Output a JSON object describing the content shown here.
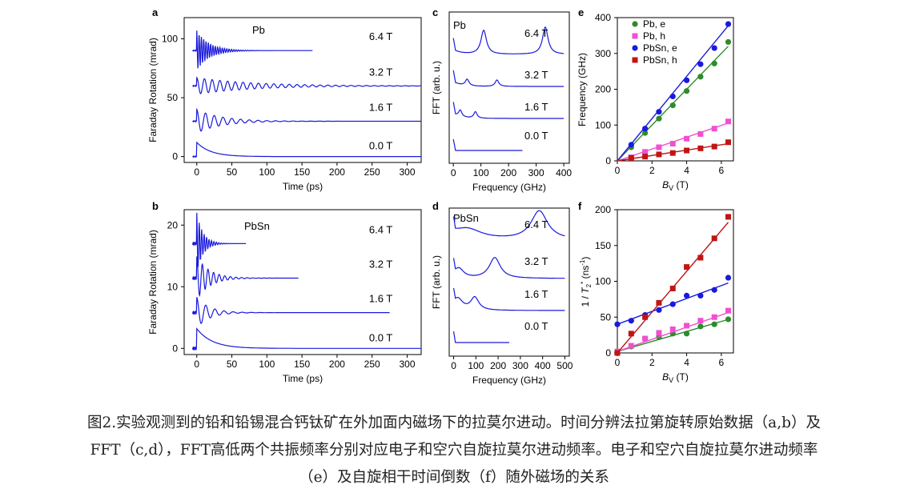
{
  "colors": {
    "trace": "#1a1adc",
    "pb_e": "#2e8b2e",
    "pb_h": "#f050d0",
    "pbsn_e": "#1a1adc",
    "pbsn_h": "#c01515"
  },
  "panels": {
    "a": {
      "letter": "a",
      "sample": "Pb"
    },
    "b": {
      "letter": "b",
      "sample": "PbSn"
    },
    "c": {
      "letter": "c",
      "sample": "Pb"
    },
    "d": {
      "letter": "d",
      "sample": "PbSn"
    },
    "e": {
      "letter": "e"
    },
    "f": {
      "letter": "f"
    }
  },
  "chart_data": [
    {
      "id": "a",
      "type": "line",
      "xlabel": "Time (ps)",
      "ylabel": "Faraday Rotation (mrad)",
      "xlim": [
        -18,
        320
      ],
      "ylim": [
        -5,
        118
      ],
      "xticks": [
        0,
        50,
        100,
        150,
        200,
        250,
        300
      ],
      "yticks": [
        0,
        50,
        100
      ],
      "series": [
        {
          "name": "0.0 T",
          "offset": 0,
          "end": 320,
          "amp": 0,
          "period": 0,
          "decay": 0,
          "background": [
            12,
            20
          ]
        },
        {
          "name": "1.6 T",
          "offset": 30,
          "end": 320,
          "amp": 10,
          "period": 12.5,
          "decay": 35,
          "background": [
            0,
            0
          ]
        },
        {
          "name": "3.2 T",
          "offset": 60,
          "end": 320,
          "amp": 7,
          "period": 11,
          "decay": 80,
          "background": [
            0,
            0
          ]
        },
        {
          "name": "6.4 T",
          "offset": 90,
          "end": 165,
          "amp": 17,
          "period": 3.3,
          "decay": 18,
          "background": [
            0,
            0
          ]
        }
      ]
    },
    {
      "id": "b",
      "type": "line",
      "xlabel": "Time (ps)",
      "ylabel": "Faraday Rotation (mrad)",
      "xlim": [
        -18,
        320
      ],
      "ylim": [
        -1,
        22.5
      ],
      "xticks": [
        0,
        50,
        100,
        150,
        200,
        250,
        300
      ],
      "yticks": [
        0,
        10,
        20
      ],
      "series": [
        {
          "name": "0.0 T",
          "offset": 0,
          "end": 320,
          "amp": 0,
          "period": 0,
          "decay": 0,
          "background": [
            3.2,
            22
          ]
        },
        {
          "name": "1.6 T",
          "offset": 5.8,
          "end": 275,
          "amp": 2.5,
          "period": 13,
          "decay": 18,
          "background": [
            0,
            0
          ]
        },
        {
          "name": "3.2 T",
          "offset": 11.4,
          "end": 145,
          "amp": 3.5,
          "period": 8,
          "decay": 18,
          "background": [
            0,
            0
          ]
        },
        {
          "name": "6.4 T",
          "offset": 17,
          "end": 70,
          "amp": 5,
          "period": 3.5,
          "decay": 9,
          "background": [
            0,
            0
          ]
        }
      ]
    },
    {
      "id": "c",
      "type": "line",
      "xlabel": "Frequency (GHz)",
      "ylabel": "FFT (arb. u.)",
      "xlim": [
        -15,
        420
      ],
      "xticks": [
        0,
        100,
        200,
        300,
        400
      ],
      "series": [
        {
          "name": "0.0 T",
          "end": 250,
          "peaks": []
        },
        {
          "name": "1.6 T",
          "end": 400,
          "peaks": [
            [
              25,
              8,
              7
            ],
            [
              80,
              8,
              7
            ]
          ]
        },
        {
          "name": "3.2 T",
          "end": 400,
          "peaks": [
            [
              50,
              8,
              8
            ],
            [
              158,
              8,
              8
            ]
          ]
        },
        {
          "name": "6.4 T",
          "end": 400,
          "peaks": [
            [
              110,
              30,
              12
            ],
            [
              333,
              34,
              12
            ]
          ]
        }
      ]
    },
    {
      "id": "d",
      "type": "line",
      "xlabel": "Frequency (GHz)",
      "ylabel": "FFT (arb. u.)",
      "xlim": [
        -20,
        520
      ],
      "xticks": [
        0,
        100,
        200,
        300,
        400,
        500
      ],
      "series": [
        {
          "name": "0.0 T",
          "end": 250,
          "peaks": []
        },
        {
          "name": "1.6 T",
          "end": 500,
          "peaks": [
            [
              20,
              12,
              25
            ],
            [
              95,
              16,
              22
            ]
          ]
        },
        {
          "name": "3.2 T",
          "end": 500,
          "peaks": [
            [
              25,
              10,
              25
            ],
            [
              185,
              26,
              30
            ]
          ]
        },
        {
          "name": "6.4 T",
          "end": 500,
          "peaks": [
            [
              60,
              14,
              80
            ],
            [
              385,
              36,
              45
            ]
          ]
        }
      ]
    },
    {
      "id": "e",
      "type": "scatter",
      "xlabel": "B_V (T)",
      "ylabel": "Frequency (GHz)",
      "xlim": [
        0,
        6.7
      ],
      "ylim": [
        0,
        400
      ],
      "xticks": [
        0,
        2,
        4,
        6
      ],
      "yticks": [
        0,
        100,
        200,
        300,
        400
      ],
      "legend": "top-left",
      "series": [
        {
          "name": "Pb, e",
          "marker": "circle",
          "x": [
            0.8,
            1.6,
            2.4,
            3.2,
            4.0,
            4.8,
            5.6,
            6.4
          ],
          "y": [
            38,
            78,
            118,
            155,
            195,
            235,
            272,
            332
          ],
          "fit": [
            0,
            50
          ]
        },
        {
          "name": "Pb, h",
          "marker": "square",
          "x": [
            0.8,
            1.6,
            2.4,
            3.2,
            4.0,
            4.8,
            5.6,
            6.4
          ],
          "y": [
            10,
            25,
            38,
            48,
            62,
            75,
            90,
            110
          ],
          "fit": [
            0,
            16.5
          ]
        },
        {
          "name": "PbSn, e",
          "marker": "circle",
          "x": [
            0.8,
            1.6,
            2.4,
            3.2,
            4.0,
            4.8,
            5.6,
            6.4
          ],
          "y": [
            45,
            90,
            137,
            180,
            225,
            270,
            315,
            382
          ],
          "fit": [
            0,
            59
          ]
        },
        {
          "name": "PbSn, h",
          "marker": "square",
          "x": [
            0.8,
            1.6,
            2.4,
            3.2,
            4.0,
            4.8,
            5.6,
            6.4
          ],
          "y": [
            8,
            12,
            18,
            22,
            29,
            35,
            40,
            52
          ],
          "fit": [
            0,
            7.5
          ]
        }
      ]
    },
    {
      "id": "f",
      "type": "scatter",
      "xlabel": "B_V (T)",
      "ylabel": "1 / T2* (ns-1)",
      "xlim": [
        0,
        6.7
      ],
      "ylim": [
        0,
        200
      ],
      "xticks": [
        0,
        2,
        4,
        6
      ],
      "yticks": [
        0,
        50,
        100,
        150,
        200
      ],
      "series": [
        {
          "name": "Pb, e",
          "marker": "circle",
          "x": [
            0,
            0.8,
            1.6,
            2.4,
            3.2,
            4.0,
            4.8,
            5.6,
            6.4
          ],
          "y": [
            2,
            9,
            20,
            22,
            27,
            27,
            37,
            40,
            47
          ],
          "fit": [
            2,
            7
          ]
        },
        {
          "name": "Pb, h",
          "marker": "square",
          "x": [
            0,
            0.8,
            1.6,
            2.4,
            3.2,
            4.0,
            4.8,
            5.6,
            6.4
          ],
          "y": [
            2,
            10,
            20,
            28,
            33,
            38,
            45,
            50,
            59
          ],
          "fit": [
            2,
            8.5
          ]
        },
        {
          "name": "PbSn, e",
          "marker": "circle",
          "x": [
            0,
            0.8,
            1.6,
            2.4,
            3.2,
            4.0,
            4.8,
            5.6,
            6.4
          ],
          "y": [
            40,
            45,
            53,
            60,
            68,
            80,
            80,
            88,
            105
          ],
          "fit": [
            40,
            9
          ]
        },
        {
          "name": "PbSn, h",
          "marker": "square",
          "x": [
            0,
            0.8,
            1.6,
            2.4,
            3.2,
            4.0,
            4.8,
            5.6,
            6.4
          ],
          "y": [
            0,
            27,
            50,
            70,
            90,
            120,
            133,
            160,
            190
          ],
          "fit": [
            0,
            28.5
          ]
        }
      ]
    }
  ],
  "caption": {
    "line1": "图2.实验观测到的铅和铅锡混合钙钛矿在外加面内磁场下的拉莫尔进动。时间分辨法拉第旋转原始数据（a,b）及",
    "line2": "FFT（c,d），FFT高低两个共振频率分别对应电子和空穴自旋拉莫尔进动频率。电子和空穴自旋拉莫尔进动频率",
    "line3": "（e）及自旋相干时间倒数（f）随外磁场的关系"
  }
}
